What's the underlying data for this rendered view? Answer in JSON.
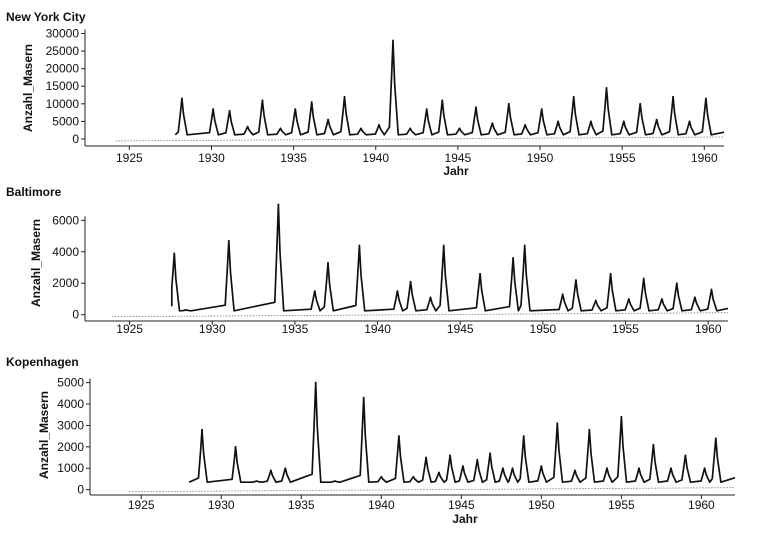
{
  "chart_data": [
    {
      "type": "line",
      "title": "New York City",
      "xlabel": "Jahr",
      "ylabel": "Anzahl_Masern",
      "xlim": [
        1922.3,
        1961.2
      ],
      "ylim": [
        -2000,
        31000
      ],
      "xticks": [
        1925,
        1930,
        1935,
        1940,
        1945,
        1950,
        1955,
        1960
      ],
      "yticks": [
        0,
        5000,
        10000,
        15000,
        20000,
        25000,
        30000
      ],
      "grid": false,
      "series": [
        {
          "x_start": 1927.8,
          "x_end": 1961.2,
          "baseline": 1200,
          "peaks": [
            [
              1928.2,
              11500
            ],
            [
              1930.1,
              8500
            ],
            [
              1931.1,
              8000
            ],
            [
              1932.2,
              3500
            ],
            [
              1933.1,
              11000
            ],
            [
              1934.2,
              3000
            ],
            [
              1935.1,
              8500
            ],
            [
              1936.1,
              10500
            ],
            [
              1937.1,
              5500
            ],
            [
              1938.1,
              12000
            ],
            [
              1939.1,
              3000
            ],
            [
              1940.2,
              4000
            ],
            [
              1941.05,
              28000
            ],
            [
              1942.1,
              3000
            ],
            [
              1943.1,
              8500
            ],
            [
              1944.05,
              11000
            ],
            [
              1945.1,
              3000
            ],
            [
              1946.1,
              9000
            ],
            [
              1947.1,
              4500
            ],
            [
              1948.1,
              10000
            ],
            [
              1949.1,
              4000
            ],
            [
              1950.1,
              8500
            ],
            [
              1951.1,
              5000
            ],
            [
              1952.05,
              12000
            ],
            [
              1953.1,
              5000
            ],
            [
              1954.05,
              14500
            ],
            [
              1955.1,
              5000
            ],
            [
              1956.1,
              10000
            ],
            [
              1957.1,
              5500
            ],
            [
              1958.1,
              12000
            ],
            [
              1959.1,
              5000
            ],
            [
              1960.1,
              11500
            ]
          ]
        }
      ]
    },
    {
      "type": "line",
      "title": "Baltimore",
      "xlabel": "",
      "ylabel": "Anzahl_Masern",
      "xlim": [
        1922.3,
        1961.2
      ],
      "ylim": [
        -400,
        7100
      ],
      "xticks": [
        1925,
        1930,
        1935,
        1940,
        1945,
        1950,
        1955,
        1960
      ],
      "yticks": [
        0,
        2000,
        4000,
        6000
      ],
      "grid": false,
      "series": [
        {
          "x_start": 1927.55,
          "x_end": 1961.2,
          "baseline": 250,
          "peaks": [
            [
              1927.7,
              3900
            ],
            [
              1928.4,
              300
            ],
            [
              1931.0,
              4700
            ],
            [
              1934.0,
              7000
            ],
            [
              1936.2,
              1500
            ],
            [
              1937.0,
              3300
            ],
            [
              1938.9,
              4400
            ],
            [
              1941.2,
              1500
            ],
            [
              1942.0,
              2100
            ],
            [
              1943.2,
              1100
            ],
            [
              1944.0,
              4400
            ],
            [
              1946.2,
              2600
            ],
            [
              1948.2,
              3600
            ],
            [
              1948.9,
              4400
            ],
            [
              1951.2,
              1300
            ],
            [
              1952.0,
              2200
            ],
            [
              1953.2,
              900
            ],
            [
              1954.1,
              2600
            ],
            [
              1955.2,
              1000
            ],
            [
              1956.1,
              2300
            ],
            [
              1957.2,
              1000
            ],
            [
              1958.1,
              2000
            ],
            [
              1959.2,
              1100
            ],
            [
              1960.2,
              1600
            ]
          ]
        }
      ]
    },
    {
      "type": "line",
      "title": "Kopenhagen",
      "xlabel": "Jahr",
      "ylabel": "Anzahl_Masern",
      "xlim": [
        1921.8,
        1962.1
      ],
      "ylim": [
        -250,
        5450
      ],
      "xticks": [
        1925,
        1930,
        1935,
        1940,
        1945,
        1950,
        1955,
        1960
      ],
      "yticks": [
        0,
        1000,
        2000,
        3000,
        4000,
        5000
      ],
      "grid": false,
      "series": [
        {
          "x_start": 1928.0,
          "x_end": 1962.1,
          "baseline": 350,
          "peaks": [
            [
              1928.8,
              2800
            ],
            [
              1930.9,
              2000
            ],
            [
              1932.2,
              400
            ],
            [
              1933.1,
              900
            ],
            [
              1934.0,
              1000
            ],
            [
              1935.9,
              5000
            ],
            [
              1937.1,
              400
            ],
            [
              1938.9,
              4300
            ],
            [
              1940.0,
              600
            ],
            [
              1941.1,
              2500
            ],
            [
              1942.0,
              600
            ],
            [
              1942.8,
              1500
            ],
            [
              1943.6,
              800
            ],
            [
              1944.3,
              1600
            ],
            [
              1945.1,
              1100
            ],
            [
              1946.0,
              1400
            ],
            [
              1946.8,
              1700
            ],
            [
              1947.6,
              1000
            ],
            [
              1948.2,
              1000
            ],
            [
              1948.9,
              2500
            ],
            [
              1950.0,
              1100
            ],
            [
              1951.0,
              3100
            ],
            [
              1952.1,
              900
            ],
            [
              1953.0,
              2800
            ],
            [
              1954.1,
              1000
            ],
            [
              1955.0,
              3400
            ],
            [
              1956.1,
              1000
            ],
            [
              1957.0,
              2100
            ],
            [
              1958.1,
              1000
            ],
            [
              1959.0,
              1600
            ],
            [
              1960.2,
              1000
            ],
            [
              1960.9,
              2400
            ]
          ]
        }
      ]
    }
  ]
}
